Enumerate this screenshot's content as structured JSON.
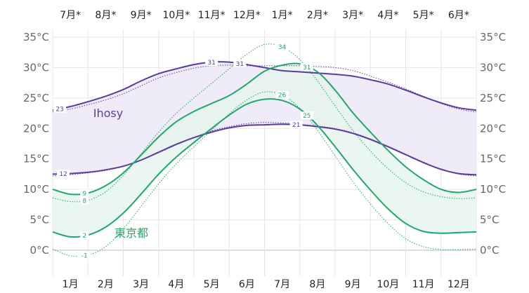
{
  "chart_data": {
    "type": "line",
    "title": "",
    "xlabel": "",
    "ylabel": "",
    "ylim": [
      0,
      35
    ],
    "yticks": [
      "0°C",
      "5°C",
      "10°C",
      "15°C",
      "20°C",
      "25°C",
      "30°C",
      "35°C"
    ],
    "top_months": [
      "7月*",
      "8月*",
      "9月*",
      "10月*",
      "11月*",
      "12月*",
      "1月*",
      "2月*",
      "3月*",
      "4月*",
      "5月*",
      "6月*"
    ],
    "bottom_months": [
      "1月",
      "2月",
      "3月",
      "4月",
      "5月",
      "6月",
      "7月",
      "8月",
      "9月",
      "10月",
      "11月",
      "12月"
    ],
    "x": [
      0,
      0.5,
      1,
      1.5,
      2,
      2.5,
      3,
      3.5,
      4,
      4.5,
      5,
      5.5,
      6,
      6.5,
      7,
      7.5,
      8,
      8.5,
      9,
      9.5,
      10,
      10.5,
      11,
      11.5,
      12
    ],
    "colors": {
      "ihosy": "#5c3a9e",
      "ihosy_band": "#ece8f7",
      "tokyo": "#1fa86a",
      "tokyo_band": "#e6f4ee",
      "grid": "#e6e6e6",
      "zero_line": "#bbbbbb"
    },
    "series": [
      {
        "name": "Ihosy",
        "high": [
          23,
          23.6,
          24.4,
          25.3,
          26.4,
          27.8,
          29.0,
          29.8,
          30.5,
          30.9,
          30.9,
          30.5,
          30.0,
          29.5,
          29.3,
          29.1,
          28.9,
          28.6,
          28.0,
          27.3,
          26.3,
          25.2,
          24.2,
          23.4,
          23.0
        ],
        "low": [
          12.5,
          12.6,
          12.8,
          13.2,
          13.8,
          14.8,
          16.1,
          17.4,
          18.5,
          19.4,
          20.1,
          20.5,
          20.6,
          20.7,
          20.6,
          20.3,
          19.9,
          19.2,
          18.2,
          17.0,
          15.7,
          14.4,
          13.3,
          12.6,
          12.4
        ],
        "high_labels": [
          {
            "x": 0.2,
            "value": "23"
          },
          {
            "x": 4.5,
            "value": "31"
          },
          {
            "x": 5.3,
            "value": "31"
          }
        ],
        "low_labels": [
          {
            "x": 0.3,
            "value": "12"
          },
          {
            "x": 6.9,
            "value": "21"
          }
        ]
      },
      {
        "name": "東京都",
        "high": [
          10.0,
          9.2,
          9.4,
          10.6,
          12.7,
          15.6,
          18.6,
          21.1,
          22.8,
          24.1,
          25.4,
          27.3,
          29.4,
          30.4,
          30.6,
          29.3,
          26.3,
          22.6,
          19.4,
          16.4,
          13.7,
          11.6,
          10.0,
          9.5,
          10.0
        ],
        "low": [
          3.0,
          2.2,
          2.5,
          3.8,
          6.1,
          9.2,
          12.5,
          15.3,
          17.7,
          20.0,
          22.2,
          24.0,
          24.8,
          24.6,
          23.2,
          20.5,
          17.0,
          13.3,
          9.9,
          6.8,
          4.4,
          3.1,
          2.8,
          2.9,
          3.0
        ],
        "high_labels": [
          {
            "x": 0.9,
            "value": "9"
          },
          {
            "x": 7.2,
            "value": "31"
          }
        ],
        "low_labels": [
          {
            "x": 0.9,
            "value": "2"
          },
          {
            "x": 7.2,
            "value": "25"
          }
        ]
      }
    ],
    "reference": [
      {
        "name": "Ihosy",
        "high": [
          22.7,
          23.2,
          23.9,
          24.7,
          25.7,
          27.0,
          28.3,
          29.2,
          29.9,
          30.3,
          30.4,
          30.3,
          30.3,
          30.3,
          30.3,
          30.2,
          30.0,
          29.5,
          28.6,
          27.6,
          26.5,
          25.3,
          24.1,
          23.2,
          22.7
        ],
        "low": [
          12.2,
          12.4,
          12.7,
          13.1,
          13.8,
          14.8,
          16.0,
          17.3,
          18.5,
          19.6,
          20.3,
          20.8,
          21.0,
          20.9,
          20.7,
          20.4,
          20.0,
          19.3,
          18.3,
          17.1,
          15.8,
          14.5,
          13.3,
          12.5,
          12.2
        ]
      },
      {
        "name": "東京都",
        "high": [
          8.6,
          8.0,
          8.2,
          9.6,
          12.3,
          15.8,
          19.4,
          22.5,
          25.0,
          27.4,
          29.8,
          32.2,
          33.8,
          33.4,
          31.3,
          27.8,
          23.7,
          19.7,
          16.3,
          13.4,
          11.1,
          9.6,
          8.8,
          8.5,
          8.6
        ],
        "low": [
          0.2,
          -0.9,
          -0.8,
          0.6,
          3.5,
          7.2,
          10.9,
          14.2,
          17.0,
          19.7,
          22.4,
          24.7,
          26.0,
          25.5,
          23.3,
          19.7,
          15.5,
          11.3,
          7.6,
          4.4,
          1.9,
          0.6,
          0.1,
          0.1,
          0.2
        ],
        "high_labels": [
          {
            "x": 6.5,
            "value": "34"
          },
          {
            "x": 0.9,
            "value": "8"
          }
        ],
        "low_labels": [
          {
            "x": 6.5,
            "value": "26"
          },
          {
            "x": 0.9,
            "value": "-1"
          }
        ]
      }
    ],
    "series_labels": [
      {
        "series": "Ihosy",
        "text": "Ihosy",
        "x": 1.15,
        "y": 21.9
      },
      {
        "series": "東京都",
        "text": "東京都",
        "x": 1.75,
        "y": 2.2
      }
    ]
  }
}
